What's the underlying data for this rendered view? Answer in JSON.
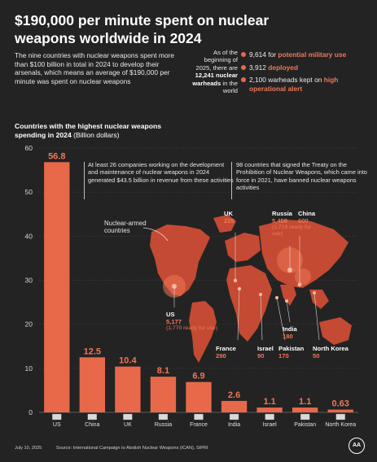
{
  "header": {
    "title_line1": "$190,000 per minute spent on nuclear",
    "title_line2": "weapons worldwide in 2024",
    "intro": "The nine countries with nuclear weapons spent more than $100 billion in total in 2024 to develop their arsenals, which means an average of $190,000 per minute was spent on nuclear weapons"
  },
  "warheads": {
    "as_of_prefix": "As of the beginning of 2025, there are",
    "total": "12,241",
    "as_of_suffix_bold": "nuclear warheads",
    "as_of_suffix": "in the world",
    "items": [
      {
        "value": "9,614 for",
        "highlight": "potential military use"
      },
      {
        "value": "3,912",
        "highlight": "deployed"
      },
      {
        "value": "2,100 warheads kept on",
        "highlight": "high operational alert"
      }
    ]
  },
  "chart_title": {
    "bold": "Countries with the highest nuclear weapons spending in 2024",
    "unit": "(Billion dollars)"
  },
  "notes": {
    "companies": "At least 26 companies working on the development and maintenance of nuclear weapons in 2024 generated $43.5 billion in revenue from these activities",
    "treaty": "98 countries that signed the Treaty on the Prohibition of Nuclear Weapons, which came into force in 2021, have banned nuclear weapons activities",
    "legend": "Nuclear-armed countries"
  },
  "map_labels": {
    "uk": {
      "name": "UK",
      "value": "225"
    },
    "russia": {
      "name": "Russia",
      "value": "5,459",
      "sub": "(1,718 ready for use)"
    },
    "china": {
      "name": "China",
      "value": "600"
    },
    "us": {
      "name": "US",
      "value": "5,177",
      "sub": "(1,770 ready for use)"
    },
    "india": {
      "name": "India",
      "value": "180"
    },
    "france": {
      "name": "France",
      "value": "290"
    },
    "israel": {
      "name": "Israel",
      "value": "90"
    },
    "pakistan": {
      "name": "Pakistan",
      "value": "170"
    },
    "north_korea": {
      "name": "North Korea",
      "value": "50"
    }
  },
  "colors": {
    "background": "#232323",
    "bar": "#e8684a",
    "map": "#c44a33",
    "highlight": "#f07755",
    "grid": "#3c3c3c"
  },
  "chart_data": {
    "type": "bar",
    "categories": [
      "US",
      "China",
      "UK",
      "Russia",
      "France",
      "India",
      "Israel",
      "Pakistan",
      "North Korea"
    ],
    "values": [
      56.8,
      12.5,
      10.4,
      8.1,
      6.9,
      2.6,
      1.1,
      1.1,
      0.63
    ],
    "value_labels": [
      "56.8",
      "12.5",
      "10.4",
      "8.1",
      "6.9",
      "2.6",
      "1.1",
      "1.1",
      "0.63"
    ],
    "ylim": [
      0,
      60
    ],
    "yticks": [
      0,
      10,
      20,
      30,
      40,
      50,
      60
    ],
    "grid": true
  },
  "footer": {
    "date": "July 10, 2025",
    "source": "Source: International Campaign to Abolish Nuclear Weapons (ICAN), SIPRI",
    "logo_text": "AA"
  }
}
